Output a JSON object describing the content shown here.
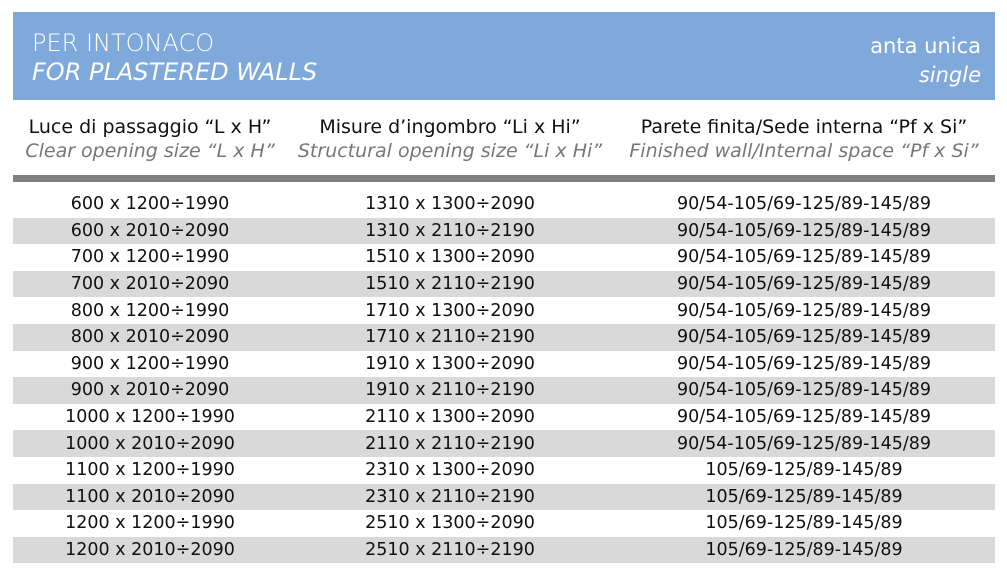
{
  "banner": {
    "title_it": "PER INTONACO",
    "title_en": "FOR PLASTERED WALLS",
    "type_it": "anta unica",
    "type_en": "single"
  },
  "columns": [
    {
      "it": "Luce di passaggio “L x H”",
      "en": "Clear opening size “L x H”"
    },
    {
      "it": "Misure d’ingombro “Li x Hi”",
      "en": "Structural opening size “Li x Hi”"
    },
    {
      "it": "Parete finita/Sede interna “Pf x Si”",
      "en": "Finished wall/Internal space “Pf x Si”"
    }
  ],
  "rows": [
    [
      "600 x 1200÷1990",
      "1310 x 1300÷2090",
      "90/54-105/69-125/89-145/89"
    ],
    [
      "600 x 2010÷2090",
      "1310 x 2110÷2190",
      "90/54-105/69-125/89-145/89"
    ],
    [
      "700 x 1200÷1990",
      "1510 x 1300÷2090",
      "90/54-105/69-125/89-145/89"
    ],
    [
      "700 x 2010÷2090",
      "1510 x 2110÷2190",
      "90/54-105/69-125/89-145/89"
    ],
    [
      "800 x 1200÷1990",
      "1710 x 1300÷2090",
      "90/54-105/69-125/89-145/89"
    ],
    [
      "800 x 2010÷2090",
      "1710 x 2110÷2190",
      "90/54-105/69-125/89-145/89"
    ],
    [
      "900 x 1200÷1990",
      "1910 x 1300÷2090",
      "90/54-105/69-125/89-145/89"
    ],
    [
      "900 x 2010÷2090",
      "1910 x 2110÷2190",
      "90/54-105/69-125/89-145/89"
    ],
    [
      "1000 x 1200÷1990",
      "2110 x 1300÷2090",
      "90/54-105/69-125/89-145/89"
    ],
    [
      "1000 x 2010÷2090",
      "2110 x 2110÷2190",
      "90/54-105/69-125/89-145/89"
    ],
    [
      "1100 x 1200÷1990",
      "2310 x 1300÷2090",
      "105/69-125/89-145/89"
    ],
    [
      "1100 x 2010÷2090",
      "2310 x 2110÷2190",
      "105/69-125/89-145/89"
    ],
    [
      "1200 x 1200÷1990",
      "2510 x 1300÷2090",
      "105/69-125/89-145/89"
    ],
    [
      "1200 x 2010÷2090",
      "2510 x 2110÷2190",
      "105/69-125/89-145/89"
    ]
  ]
}
